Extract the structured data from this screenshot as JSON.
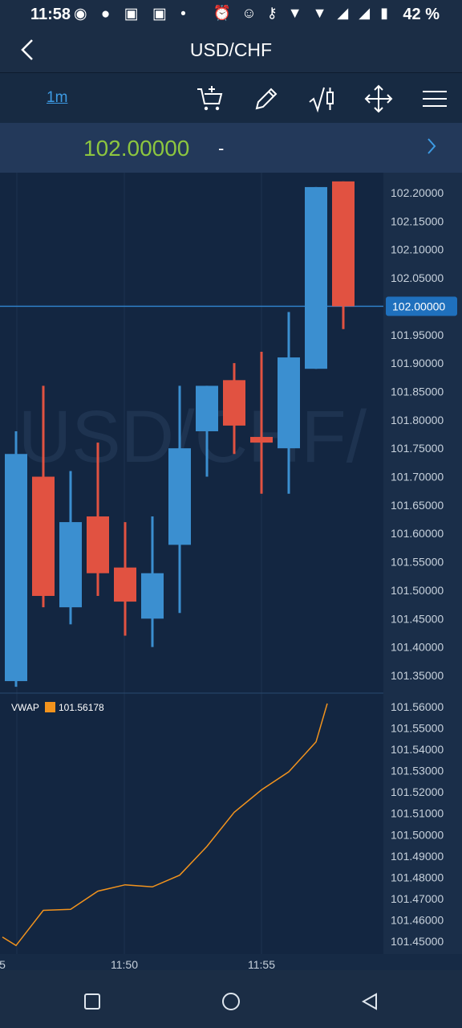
{
  "status_bar": {
    "time": "11:58",
    "battery": "42 %",
    "left_icons": "◉ ● ▣ ▣ •",
    "right_icons": "⏰ ☺ ⚷ ▼ ▼ ◢ ◢ ▮"
  },
  "header": {
    "title": "USD/CHF",
    "back_icon": "chevron-left-icon"
  },
  "toolbar": {
    "timeframe": "1m"
  },
  "price_bar": {
    "price": "102.00000",
    "change": "-"
  },
  "watermark": "USD/CHF/",
  "chart_data": [
    {
      "type": "candlestick",
      "current_price": "102.00000",
      "ylim": [
        101.3,
        102.25
      ],
      "y_ticks": [
        "102.20000",
        "102.15000",
        "102.10000",
        "102.05000",
        "101.95000",
        "101.90000",
        "101.85000",
        "101.80000",
        "101.75000",
        "101.70000",
        "101.65000",
        "101.60000",
        "101.55000",
        "101.50000",
        "101.45000",
        "101.40000",
        "101.35000"
      ],
      "colors": {
        "up": "#3b8fd0",
        "down": "#e15241",
        "price_line": "#2f7fc6"
      },
      "candles": [
        {
          "o": 101.34,
          "c": 101.74,
          "h": 101.78,
          "l": 101.33
        },
        {
          "o": 101.7,
          "c": 101.49,
          "h": 101.86,
          "l": 101.47
        },
        {
          "o": 101.47,
          "c": 101.62,
          "h": 101.71,
          "l": 101.44
        },
        {
          "o": 101.63,
          "c": 101.53,
          "h": 101.76,
          "l": 101.49
        },
        {
          "o": 101.54,
          "c": 101.48,
          "h": 101.62,
          "l": 101.42
        },
        {
          "o": 101.45,
          "c": 101.53,
          "h": 101.63,
          "l": 101.4
        },
        {
          "o": 101.58,
          "c": 101.75,
          "h": 101.86,
          "l": 101.46
        },
        {
          "o": 101.78,
          "c": 101.86,
          "h": 101.86,
          "l": 101.7
        },
        {
          "o": 101.87,
          "c": 101.79,
          "h": 101.9,
          "l": 101.74
        },
        {
          "o": 101.77,
          "c": 101.76,
          "h": 101.92,
          "l": 101.67
        },
        {
          "o": 101.75,
          "c": 101.91,
          "h": 101.99,
          "l": 101.67
        },
        {
          "o": 101.89,
          "c": 102.21,
          "h": 102.21,
          "l": 101.89
        },
        {
          "o": 102.22,
          "c": 102.0,
          "h": 102.22,
          "l": 101.96
        }
      ]
    },
    {
      "type": "line",
      "name": "VWAP",
      "legend_value": "101.56178",
      "color": "#f2931d",
      "ylim": [
        101.445,
        101.565
      ],
      "y_ticks": [
        "101.56000",
        "101.55000",
        "101.54000",
        "101.53000",
        "101.52000",
        "101.51000",
        "101.50000",
        "101.49000",
        "101.48000",
        "101.47000",
        "101.46000",
        "101.45000"
      ],
      "values": [
        101.452,
        101.448,
        101.4645,
        101.465,
        101.4735,
        101.4765,
        101.4755,
        101.481,
        101.4945,
        101.5105,
        101.521,
        101.5295,
        101.5435,
        101.5615
      ]
    }
  ],
  "x_ticks": [
    "5",
    "11:50",
    "11:55"
  ]
}
